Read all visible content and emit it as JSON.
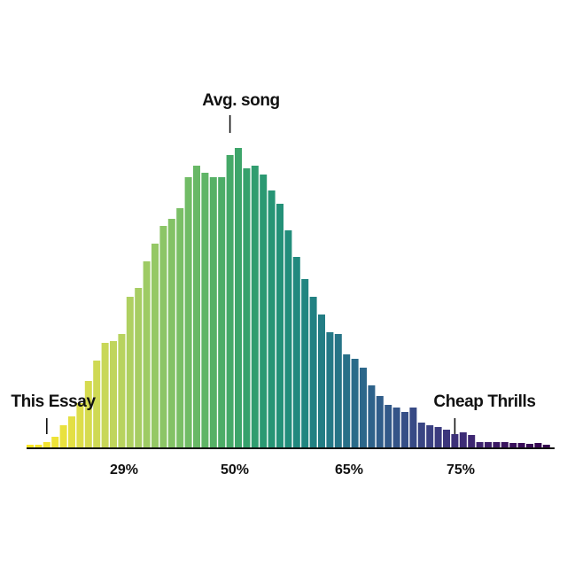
{
  "chart_data": {
    "type": "bar",
    "title": "",
    "xlabel": "",
    "ylabel": "",
    "x_tick_labels": [
      "29%",
      "50%",
      "65%",
      "75%"
    ],
    "values": [
      3,
      3,
      6,
      12,
      25,
      35,
      50,
      75,
      98,
      118,
      120,
      128,
      170,
      180,
      210,
      230,
      250,
      258,
      270,
      305,
      318,
      310,
      305,
      305,
      330,
      338,
      315,
      318,
      308,
      290,
      275,
      245,
      215,
      190,
      170,
      150,
      130,
      128,
      105,
      100,
      90,
      70,
      58,
      48,
      45,
      40,
      45,
      28,
      25,
      23,
      20,
      15,
      17,
      14,
      6,
      6,
      6,
      6,
      5,
      5,
      4,
      5,
      3
    ],
    "colors": [
      "#fde725",
      "#f9e62a",
      "#f4e431",
      "#eee337",
      "#e9e13e",
      "#e3df44",
      "#dddd4a",
      "#d6db50",
      "#cfd954",
      "#c8d758",
      "#c0d55c",
      "#b8d35f",
      "#afd061",
      "#a7cd63",
      "#9ecb64",
      "#95c865",
      "#8cc566",
      "#83c266",
      "#7abf66",
      "#71bc66",
      "#68b866",
      "#5fb566",
      "#56b166",
      "#4dad67",
      "#45a968",
      "#3da56a",
      "#36a16c",
      "#309d6f",
      "#2b9972",
      "#279575",
      "#249178",
      "#228d7b",
      "#21897e",
      "#218580",
      "#228182",
      "#237d84",
      "#247886",
      "#267487",
      "#287088",
      "#2a6b89",
      "#2c678a",
      "#2e628a",
      "#305d8a",
      "#325989",
      "#345488",
      "#364f87",
      "#374a85",
      "#394583",
      "#3a4081",
      "#3b3b7f",
      "#3c367c",
      "#3d3179",
      "#3d2c76",
      "#3e2772",
      "#3d226e",
      "#3c1d69",
      "#3b1864",
      "#3a145f",
      "#39105b",
      "#380c58",
      "#370955",
      "#360652",
      "#35044f"
    ],
    "annotations": [
      {
        "label": "This Essay",
        "bar_index": 2
      },
      {
        "label": "Avg. song",
        "bar_index": 24
      },
      {
        "label": "Cheap Thrills",
        "bar_index": 51
      }
    ],
    "grid": false,
    "legend": "none"
  }
}
